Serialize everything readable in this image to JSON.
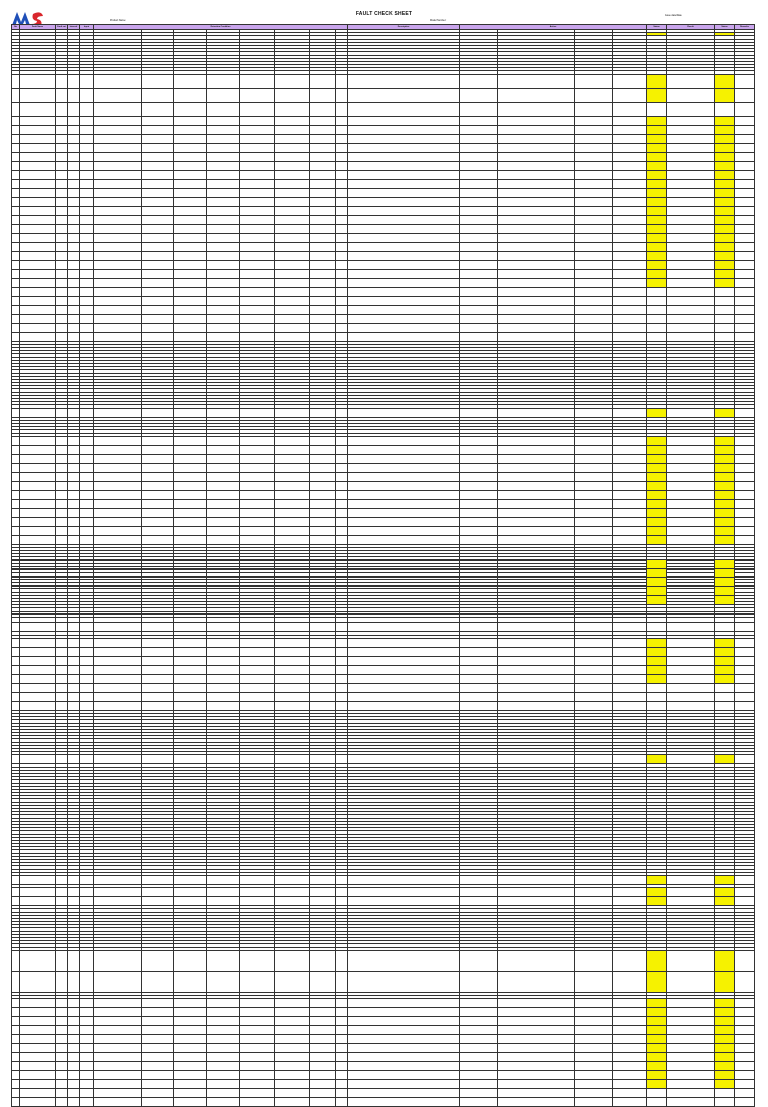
{
  "header": {
    "title": "FAULT CHECK SHEET",
    "product_label": "Product Name:",
    "model_label": "Model Number:",
    "date_label": "Issue date/Date"
  },
  "logo": {
    "colors": [
      "#1f4fb8",
      "#d9262c"
    ]
  },
  "columns": {
    "no": "No",
    "fault_name": "Fault Name",
    "col3": "Fault cat",
    "col4": "Interval",
    "col5": "Input",
    "conditions": "Detection Condition",
    "description": "Description",
    "action_group": "Action",
    "a1": "Item",
    "a2": "Value",
    "a3": "Speed",
    "a4": "Result",
    "check": "Status",
    "result": "Result",
    "status2": "Status",
    "remarks": "Remarks"
  },
  "colors": {
    "header": "#c9a5ec",
    "highlight": "#f6f200"
  },
  "page1_rows": 120,
  "page2_rows": 110
}
